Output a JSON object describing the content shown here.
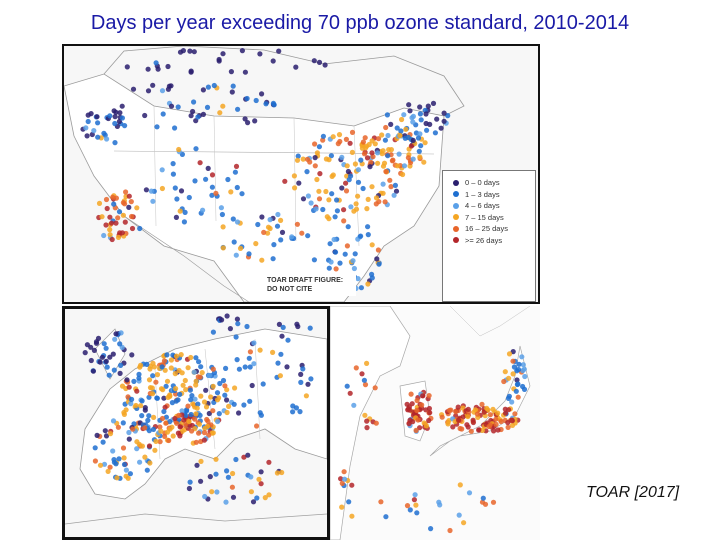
{
  "title": "Days per year exceeding 70 ppb ozone standard, 2010-2014",
  "legend": {
    "items": [
      {
        "label": "0 – 0  days",
        "color": "#2a1f6e"
      },
      {
        "label": "1 – 3  days",
        "color": "#1e6fd0"
      },
      {
        "label": "4 – 6  days",
        "color": "#5aa0e8"
      },
      {
        "label": "7 – 15  days",
        "color": "#f5a623"
      },
      {
        "label": "16 – 25  days",
        "color": "#e8652a"
      },
      {
        "label": ">= 26  days",
        "color": "#b3262a"
      }
    ]
  },
  "draft_note": {
    "line1": "TOAR DRAFT FIGURE:",
    "line2": "DO NOT CITE"
  },
  "credit": "TOAR [2017]",
  "panels": {
    "us": "north-america-map",
    "eu": "europe-map",
    "asia": "east-asia-map"
  }
}
